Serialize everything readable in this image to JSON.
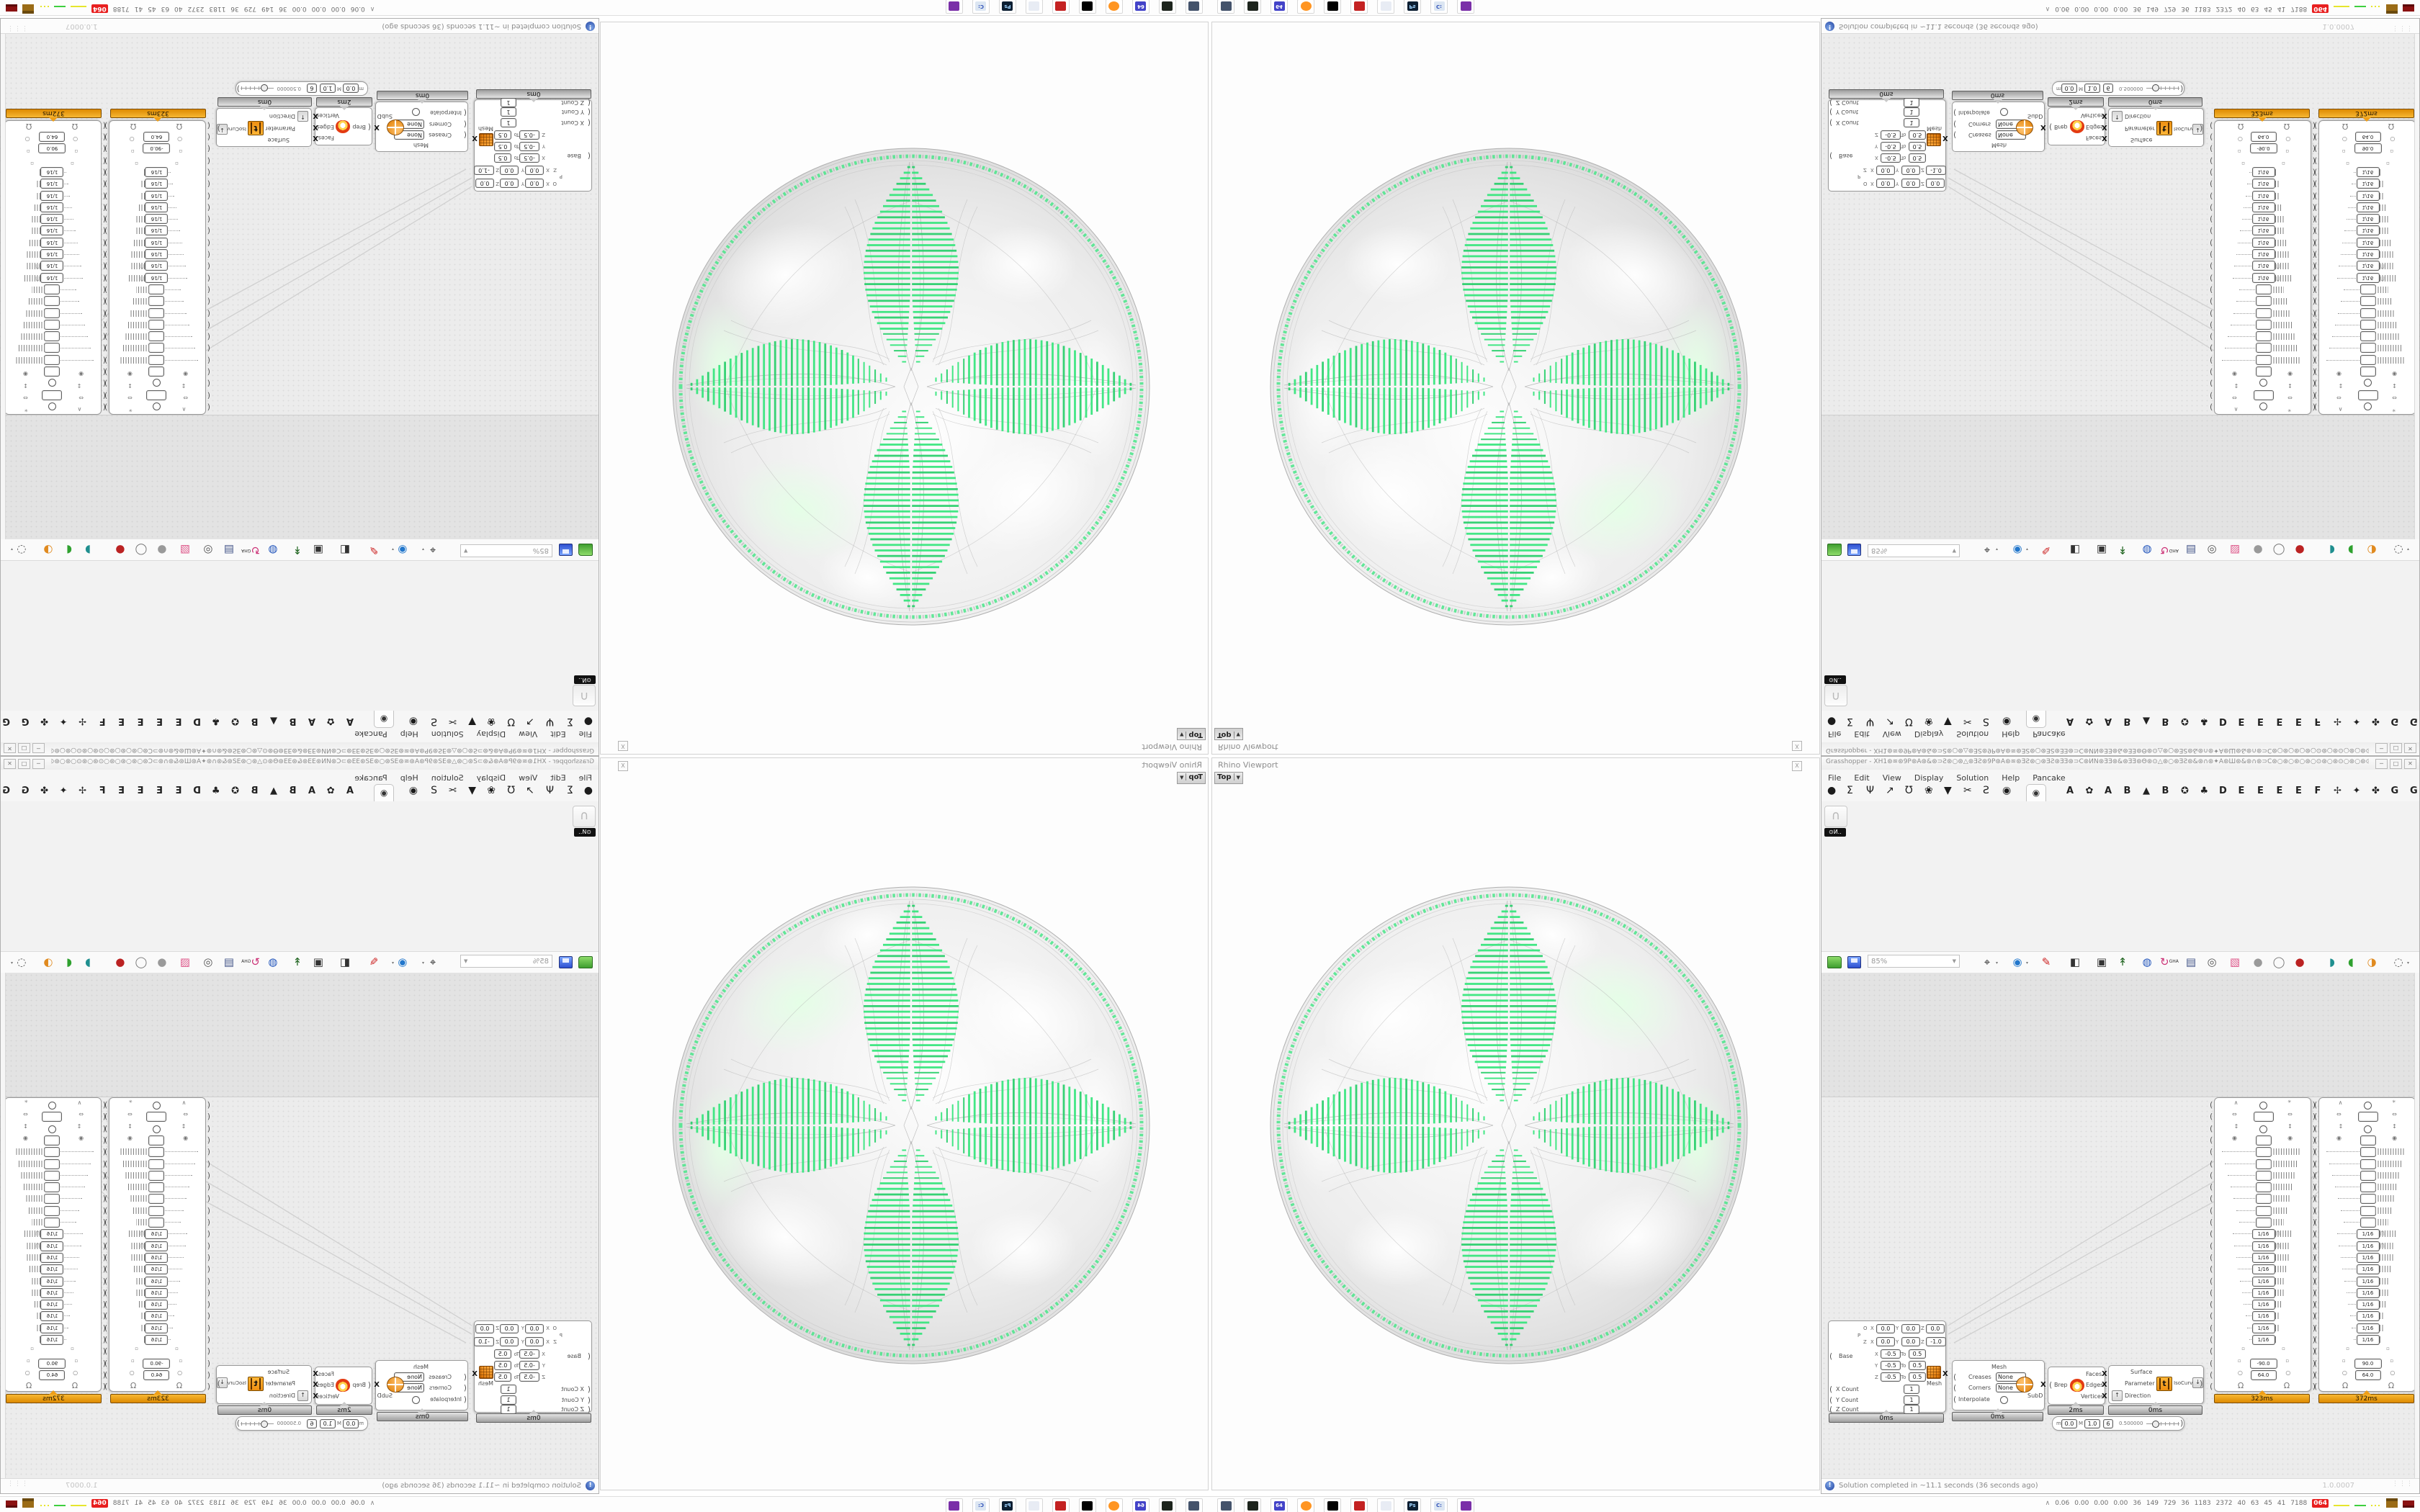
{
  "viewport": {
    "title": "Rhino Viewport",
    "tab": "Top",
    "tab_dropdown": "▼",
    "close": "X"
  },
  "gh": {
    "title": "Grasshopper - XH1⊛≋⊛9P⊛A⊛&⊛⊃Ƨ⊛○⊛△⊛ƎƧ⊛9P⊛A⊛≋⊛ƎƧ⊛○⊛ƎƧ⊛ƎƎ⊛⊃C⊛ͶN⊛ƎƎ⊛&⊛ƎƎ⊛Θ⊛⊙△⊛○⊛ƎƧ⊛&⊛∩⊛✦A⊛Ш⊛&⊛∩⊛⊃C⊛○⊛○⊛○⊛○⊙⊛○⊛⊙○⊛○⊛⊙⊛○⊙⊛○⊙⊛○⊛○⊙⊛⊙⊃…",
    "buttons": {
      "min": "─",
      "max": "□",
      "close": "✕"
    },
    "menus": [
      "File",
      "Edit",
      "View",
      "Display",
      "Solution",
      "Help",
      "Pancake"
    ],
    "tabs": {
      "icons": [
        {
          "glyph": "●",
          "name": "params-tab-icon"
        },
        {
          "glyph": "Σ",
          "name": "maths-tab-icon"
        },
        {
          "glyph": "Ψ",
          "name": "sets-tab-icon"
        },
        {
          "glyph": "↗",
          "name": "vector-tab-icon"
        },
        {
          "glyph": "Ʊ",
          "name": "curve-tab-icon"
        },
        {
          "glyph": "❀",
          "name": "surface-tab-icon"
        },
        {
          "glyph": "▼",
          "name": "mesh-tab-icon"
        },
        {
          "glyph": "✂",
          "name": "intersect-tab-icon"
        },
        {
          "glyph": "Ƨ",
          "name": "transform-tab-icon"
        },
        {
          "glyph": "◉",
          "name": "display-tab-icon"
        }
      ],
      "selected": "◉",
      "letters": [
        {
          "glyph": "A",
          "name": "tab-a-1"
        },
        {
          "glyph": "✿",
          "name": "flower-tab-icon"
        },
        {
          "glyph": "A",
          "name": "tab-a-2"
        },
        {
          "glyph": "B",
          "name": "tab-b-1"
        },
        {
          "glyph": "▲",
          "name": "mountain-tab-icon"
        },
        {
          "glyph": "B",
          "name": "tab-b-2"
        },
        {
          "glyph": "✪",
          "name": "shield-tab-icon"
        },
        {
          "glyph": "♣",
          "name": "bird-tab-icon"
        },
        {
          "glyph": "D",
          "name": "tab-d"
        },
        {
          "glyph": "E",
          "name": "tab-e-1"
        },
        {
          "glyph": "E",
          "name": "tab-e-2"
        },
        {
          "glyph": "E",
          "name": "tab-e-3"
        },
        {
          "glyph": "E",
          "name": "tab-e-4"
        },
        {
          "glyph": "F",
          "name": "tab-f"
        },
        {
          "glyph": "✢",
          "name": "mosquito-tab-icon"
        },
        {
          "glyph": "✦",
          "name": "bug-tab-icon"
        },
        {
          "glyph": "✤",
          "name": "beetle-tab-icon"
        },
        {
          "glyph": "G",
          "name": "tab-g-1"
        },
        {
          "glyph": "G",
          "name": "tab-g-2"
        }
      ]
    },
    "ribbon": {
      "widget_label": "⊙Ͷ‥"
    },
    "toolbar": {
      "zoom": "85%",
      "icons": [
        {
          "name": "zoom-extents-icon",
          "glyph": "⌖",
          "color": "#222222",
          "dd": true
        },
        {
          "name": "preview-eye-icon",
          "glyph": "◉",
          "color": "#2277cc",
          "dd": true
        },
        {
          "name": "sketch-pen-icon",
          "glyph": "✎",
          "color": "#cc2222"
        },
        {
          "name": "camera-icon",
          "glyph": "◧",
          "color": "#333333"
        },
        {
          "name": "speaker-icon",
          "glyph": "▣",
          "color": "#333333"
        },
        {
          "name": "axes-icon",
          "glyph": "↟",
          "color": "#226622"
        },
        {
          "name": "web-badge-icon",
          "glyph": "◍",
          "color": "#2255bb"
        },
        {
          "name": "gha-recycle-icon",
          "glyph": "↻",
          "color": "#cc3377",
          "text": "GHA"
        },
        {
          "name": "notes-icon",
          "glyph": "▤",
          "color": "#445588"
        },
        {
          "name": "profiler-icon",
          "glyph": "◎",
          "color": "#555555"
        },
        {
          "name": "plugin-box-icon",
          "glyph": "▧",
          "color": "#dd5588"
        },
        {
          "name": "preview-wire-icon",
          "glyph": "●",
          "color": "#9a9a9a"
        },
        {
          "name": "preview-ghost-icon",
          "glyph": "◯",
          "color": "#777777"
        },
        {
          "name": "preview-shaded-icon",
          "glyph": "●",
          "color": "#bb2222"
        },
        {
          "name": "group-teal-icon",
          "glyph": "◗",
          "color": "#1f8f8f"
        },
        {
          "name": "group-green-icon",
          "glyph": "◖",
          "color": "#2fa12f"
        },
        {
          "name": "group-orange-icon",
          "glyph": "◑",
          "color": "#e08a1f"
        },
        {
          "name": "selection-lasso-icon",
          "glyph": "◌",
          "color": "#555555",
          "dd": true
        }
      ]
    },
    "canvas": {
      "meshbox": {
        "o": "O",
        "p": "P",
        "z": "Z",
        "x": "X",
        "y": "Y",
        "to": "To",
        "origin": {
          "x": "0.0",
          "y": "0.0",
          "z": "0.0"
        },
        "zaxis": {
          "x": "0.0",
          "y": "0.0",
          "z": "-1.0"
        },
        "base": "Base",
        "mesh": "Mesh",
        "ranges": [
          {
            "axis": "X",
            "from": "-0.5",
            "to": "0.5"
          },
          {
            "axis": "Y",
            "from": "-0.5",
            "to": "0.5"
          },
          {
            "axis": "Z",
            "from": "-0.5",
            "to": "0.5"
          }
        ],
        "counts": [
          {
            "label": "X Count",
            "value": "1"
          },
          {
            "label": "Y Count",
            "value": "1"
          },
          {
            "label": "Z Count",
            "value": "1"
          }
        ],
        "time": "0ms"
      },
      "subd": {
        "mesh": "Mesh",
        "creases": "Creases",
        "creases_value": "None",
        "corners": "Corners",
        "corners_value": "None",
        "interpolate": "Interpolate",
        "out": "SubD",
        "time": "0ms"
      },
      "brep": {
        "in": "Brep",
        "out1": "Faces",
        "out2": "Edges",
        "out3": "Vertices",
        "time": "2ms"
      },
      "iso": {
        "in1": "Surface",
        "in2": "Parameter",
        "in3": "Direction",
        "t": "t",
        "out": "IsoCurve",
        "up": "↑",
        "down": "↓",
        "time": "0ms"
      },
      "slider": {
        "m": "m",
        "m_value": "0.0",
        "M": "M",
        "M_value": "1.0",
        "d_value": "6",
        "value": "0.500000"
      },
      "pools": {
        "fraction": "1/16",
        "step": ".05",
        "level": "2",
        "omega": "Ω",
        "empty_rows": 7,
        "fraction_rows": 10,
        "p1": {
          "time": "323ms",
          "angle": "-90.0",
          "size": "64.0"
        },
        "p2": {
          "time": "372ms",
          "angle": "90.0",
          "size": "64.0"
        }
      }
    },
    "status": {
      "message": "Solution completed in ~11.1 seconds (36 seconds ago)",
      "version": "1.0.0007"
    }
  },
  "taskbar": {
    "apps": [
      {
        "name": "screenshot-tool-icon",
        "bg": "#44536b",
        "fg": "#cfd8ea",
        "label": ""
      },
      {
        "name": "retro-console-icon",
        "bg": "#1d241d",
        "fg": "#4ad24a",
        "label": ""
      },
      {
        "name": "floppy-64-icon",
        "bg": "#4343c8",
        "fg": "#ffffff",
        "label": "64"
      },
      {
        "name": "firefox-icon",
        "bg": "#ff9522",
        "fg": "#ffd9a0",
        "label": ""
      },
      {
        "name": "wolf-app-icon",
        "bg": "#000000",
        "fg": "#ffffff",
        "label": ""
      },
      {
        "name": "darktable-icon",
        "bg": "#c42222",
        "fg": "#ffb3b3",
        "label": ""
      },
      {
        "name": "file-manager-icon",
        "bg": "#e8ecf4",
        "fg": "#6677cc",
        "label": ""
      },
      {
        "name": "photoshop-icon",
        "bg": "#0c1f33",
        "fg": "#9fd4ff",
        "label": "Ps"
      },
      {
        "name": "terminal-blue-icon",
        "bg": "#dce6f2",
        "fg": "#3355bb",
        "label": "C:"
      },
      {
        "name": "purple-mascot-icon",
        "bg": "#7a2fa8",
        "fg": "#e8c8ff",
        "label": ""
      }
    ],
    "tray": {
      "expander": "∧",
      "stats": [
        "0.06",
        "0.00",
        "0.00",
        "0.00",
        "36",
        "149",
        "729",
        "36",
        "1183",
        "2372",
        "40",
        "63",
        "45",
        "41",
        "7188"
      ],
      "badge": "064"
    }
  },
  "sphere": {
    "pattern_color": "#35e57c",
    "rim_color": "#49e588",
    "body": "#e9e9e9"
  }
}
